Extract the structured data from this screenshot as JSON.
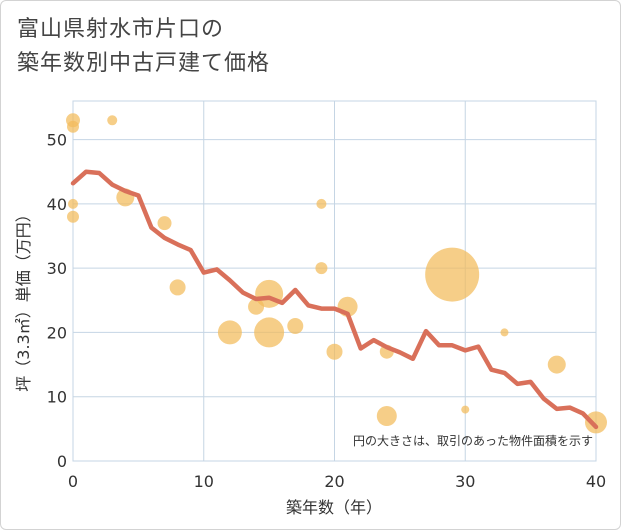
{
  "title_line1": "富山県射水市片口の",
  "title_line2": "築年数別中古戸建て価格",
  "colors": {
    "bubble": "#f2bb5a",
    "line": "#d9705a",
    "grid": "#c5d5e4",
    "text": "#444444"
  },
  "chart_data": {
    "type": "scatter",
    "xlabel": "築年数（年）",
    "ylabel": "坪（3.3㎡）単価（万円）",
    "xlim": [
      0,
      40
    ],
    "ylim": [
      0,
      56
    ],
    "x_ticks": [
      "0",
      "10",
      "20",
      "30",
      "40"
    ],
    "y_ticks": [
      "0",
      "10",
      "20",
      "30",
      "40",
      "50"
    ],
    "grid": true,
    "annotation": "円の大きさは、取引のあった物件面積を示す",
    "bubbles": [
      {
        "x": 0,
        "y": 53,
        "r": 7
      },
      {
        "x": 0,
        "y": 52,
        "r": 6
      },
      {
        "x": 0,
        "y": 40,
        "r": 5
      },
      {
        "x": 0,
        "y": 38,
        "r": 6
      },
      {
        "x": 3,
        "y": 53,
        "r": 5
      },
      {
        "x": 4,
        "y": 41,
        "r": 9
      },
      {
        "x": 7,
        "y": 37,
        "r": 7
      },
      {
        "x": 8,
        "y": 27,
        "r": 8
      },
      {
        "x": 12,
        "y": 20,
        "r": 12
      },
      {
        "x": 14,
        "y": 24,
        "r": 8
      },
      {
        "x": 15,
        "y": 26,
        "r": 14
      },
      {
        "x": 15,
        "y": 20,
        "r": 15
      },
      {
        "x": 17,
        "y": 21,
        "r": 8
      },
      {
        "x": 19,
        "y": 40,
        "r": 5
      },
      {
        "x": 19,
        "y": 30,
        "r": 6
      },
      {
        "x": 20,
        "y": 17,
        "r": 8
      },
      {
        "x": 21,
        "y": 24,
        "r": 10
      },
      {
        "x": 24,
        "y": 17,
        "r": 7
      },
      {
        "x": 24,
        "y": 7,
        "r": 10
      },
      {
        "x": 29,
        "y": 29,
        "r": 27
      },
      {
        "x": 30,
        "y": 8,
        "r": 4
      },
      {
        "x": 33,
        "y": 20,
        "r": 4
      },
      {
        "x": 37,
        "y": 15,
        "r": 9
      },
      {
        "x": 40,
        "y": 6,
        "r": 11
      }
    ],
    "line": {
      "x": [
        0,
        1,
        2,
        3,
        4,
        5,
        6,
        7,
        8,
        9,
        10,
        11,
        12,
        13,
        14,
        15,
        16,
        17,
        18,
        19,
        20,
        21,
        22,
        23,
        24,
        25,
        26,
        27,
        28,
        29,
        30,
        31,
        32,
        33,
        34,
        35,
        36,
        37,
        38,
        39,
        40
      ],
      "y": [
        43.2,
        45,
        44.8,
        43,
        42,
        41.3,
        36.3,
        34.7,
        33.7,
        32.8,
        29.3,
        29.8,
        28.1,
        26.2,
        25.2,
        25.4,
        24.6,
        26.6,
        24.2,
        23.7,
        23.7,
        22.9,
        17.5,
        18.8,
        17.7,
        16.9,
        15.9,
        20.2,
        18,
        18,
        17.2,
        17.8,
        14.2,
        13.7,
        12,
        12.3,
        9.7,
        8.1,
        8.3,
        7.4,
        5.3
      ]
    }
  }
}
